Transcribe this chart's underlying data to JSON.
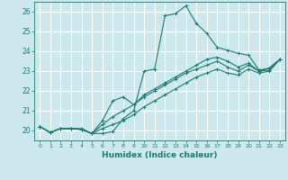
{
  "xlabel": "Humidex (Indice chaleur)",
  "background_color": "#cce8ec",
  "grid_color": "#ffffff",
  "line_color": "#1a7a6e",
  "xlim": [
    -0.5,
    23.5
  ],
  "ylim": [
    19.5,
    26.5
  ],
  "xtick_labels": [
    "0",
    "1",
    "2",
    "3",
    "4",
    "5",
    "6",
    "7",
    "8",
    "9",
    "10",
    "11",
    "12",
    "13",
    "14",
    "15",
    "16",
    "17",
    "18",
    "19",
    "20",
    "21",
    "22",
    "23"
  ],
  "ytick_labels": [
    "20",
    "21",
    "22",
    "23",
    "24",
    "25",
    "26"
  ],
  "series": [
    [
      20.2,
      19.9,
      20.1,
      20.1,
      20.1,
      19.85,
      19.85,
      19.95,
      20.6,
      21.0,
      23.0,
      23.1,
      25.8,
      25.9,
      26.3,
      25.4,
      24.9,
      24.2,
      24.05,
      23.9,
      23.8,
      23.05,
      23.15,
      23.6
    ],
    [
      20.2,
      19.9,
      20.1,
      20.1,
      20.05,
      19.85,
      20.5,
      21.5,
      21.7,
      21.3,
      21.8,
      22.1,
      22.4,
      22.7,
      23.0,
      23.3,
      23.6,
      23.7,
      23.5,
      23.2,
      23.4,
      23.0,
      23.15,
      23.6
    ],
    [
      20.2,
      19.9,
      20.1,
      20.1,
      20.05,
      19.85,
      20.3,
      20.7,
      21.0,
      21.3,
      21.7,
      22.0,
      22.3,
      22.6,
      22.9,
      23.1,
      23.3,
      23.5,
      23.2,
      23.0,
      23.3,
      23.0,
      23.05,
      23.6
    ],
    [
      20.2,
      19.9,
      20.1,
      20.1,
      20.05,
      19.85,
      20.1,
      20.3,
      20.5,
      20.8,
      21.2,
      21.5,
      21.8,
      22.1,
      22.4,
      22.7,
      22.9,
      23.1,
      22.9,
      22.8,
      23.1,
      22.9,
      23.0,
      23.6
    ]
  ]
}
